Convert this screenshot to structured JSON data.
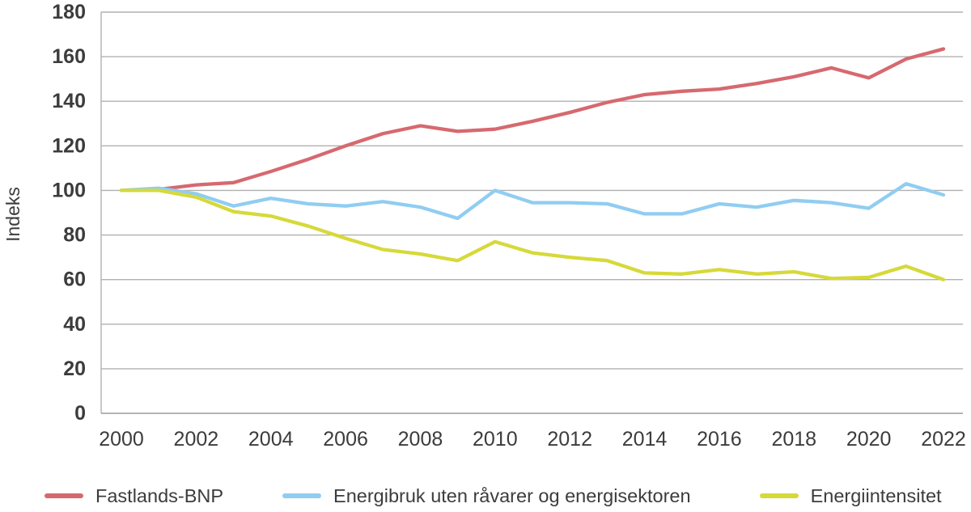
{
  "chart_data": {
    "type": "line",
    "title": "",
    "xlabel": "",
    "ylabel": "Indeks",
    "ylim": [
      0,
      180
    ],
    "y_ticks": [
      0,
      20,
      40,
      60,
      80,
      100,
      120,
      140,
      160,
      180
    ],
    "x": [
      2000,
      2001,
      2002,
      2003,
      2004,
      2005,
      2006,
      2007,
      2008,
      2009,
      2010,
      2011,
      2012,
      2013,
      2014,
      2015,
      2016,
      2017,
      2018,
      2019,
      2020,
      2021,
      2022
    ],
    "x_tick_labels": [
      "2000",
      "2002",
      "2004",
      "2006",
      "2008",
      "2010",
      "2012",
      "2014",
      "2016",
      "2018",
      "2020",
      "2022"
    ],
    "grid": "horizontal",
    "legend_position": "bottom",
    "series": [
      {
        "key": "fastlands-bnp",
        "name": "Fastlands-BNP",
        "color": "#d6696f",
        "values": [
          100,
          100.5,
          102.5,
          103.5,
          108.5,
          114,
          120,
          125.5,
          129,
          126.5,
          127.5,
          131,
          135,
          139.5,
          143,
          144.5,
          145.5,
          148,
          151,
          155,
          150.5,
          159,
          163.5
        ]
      },
      {
        "key": "energibruk",
        "name": "Energibruk uten råvarer og energisektoren",
        "color": "#90cdf1",
        "values": [
          100,
          101,
          98.5,
          93,
          96.5,
          94,
          93,
          95,
          92.5,
          87.5,
          100,
          94.5,
          94.5,
          94,
          89.5,
          89.5,
          94,
          92.5,
          95.5,
          94.5,
          92,
          103,
          98
        ]
      },
      {
        "key": "energiintensitet",
        "name": "Energiintensitet",
        "color": "#d6d93a",
        "values": [
          100,
          100,
          97,
          90.5,
          88.5,
          84,
          78.5,
          73.5,
          71.5,
          68.5,
          77,
          72,
          70,
          68.5,
          63,
          62.5,
          64.5,
          62.5,
          63.5,
          60.5,
          61,
          66,
          60
        ]
      }
    ]
  },
  "colors": {
    "grid": "#b0b0b0",
    "axis": "#9a9a9a",
    "text": "#3c3c3c",
    "background": "#ffffff"
  }
}
